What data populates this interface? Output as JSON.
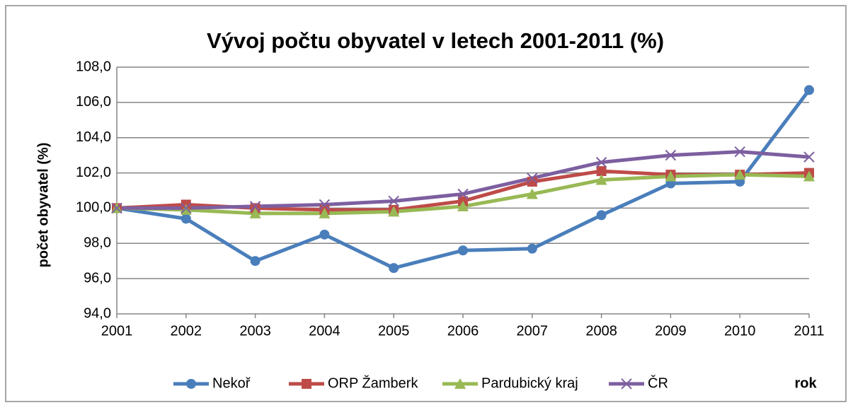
{
  "chart_data": {
    "type": "line",
    "title": "Vývoj počtu obyvatel v letech 2001-2011 (%)",
    "y_label": "počet obyvatel (%)",
    "x_label": "rok",
    "categories": [
      "2001",
      "2002",
      "2003",
      "2004",
      "2005",
      "2006",
      "2007",
      "2008",
      "2009",
      "2010",
      "2011"
    ],
    "series": [
      {
        "name": "Nekoř",
        "color": "#4a7ebb",
        "marker": "circle",
        "values": [
          100.0,
          99.4,
          97.0,
          98.5,
          96.6,
          97.6,
          97.7,
          99.6,
          101.4,
          101.5,
          106.7
        ]
      },
      {
        "name": "ORP Žamberk",
        "color": "#be4b48",
        "marker": "square",
        "values": [
          100.0,
          100.2,
          100.0,
          99.9,
          99.9,
          100.4,
          101.5,
          102.1,
          101.9,
          101.9,
          102.0
        ]
      },
      {
        "name": "Pardubický kraj",
        "color": "#98b954",
        "marker": "triangle",
        "values": [
          100.0,
          99.9,
          99.7,
          99.7,
          99.8,
          100.1,
          100.8,
          101.6,
          101.8,
          101.9,
          101.8
        ]
      },
      {
        "name": "ČR",
        "color": "#7d5fa0",
        "marker": "x",
        "values": [
          100.0,
          100.0,
          100.1,
          100.2,
          100.4,
          100.8,
          101.7,
          102.6,
          103.0,
          103.2,
          102.9
        ]
      }
    ],
    "ylim": [
      94,
      108
    ],
    "yticks": [
      {
        "value": 94,
        "label": "94,0"
      },
      {
        "value": 96,
        "label": "96,0"
      },
      {
        "value": 98,
        "label": "98,0"
      },
      {
        "value": 100,
        "label": "100,0"
      },
      {
        "value": 102,
        "label": "102,0"
      },
      {
        "value": 104,
        "label": "104,0"
      },
      {
        "value": 106,
        "label": "106,0"
      },
      {
        "value": 108,
        "label": "108,0"
      }
    ],
    "grid": true,
    "legend": "bottom"
  }
}
